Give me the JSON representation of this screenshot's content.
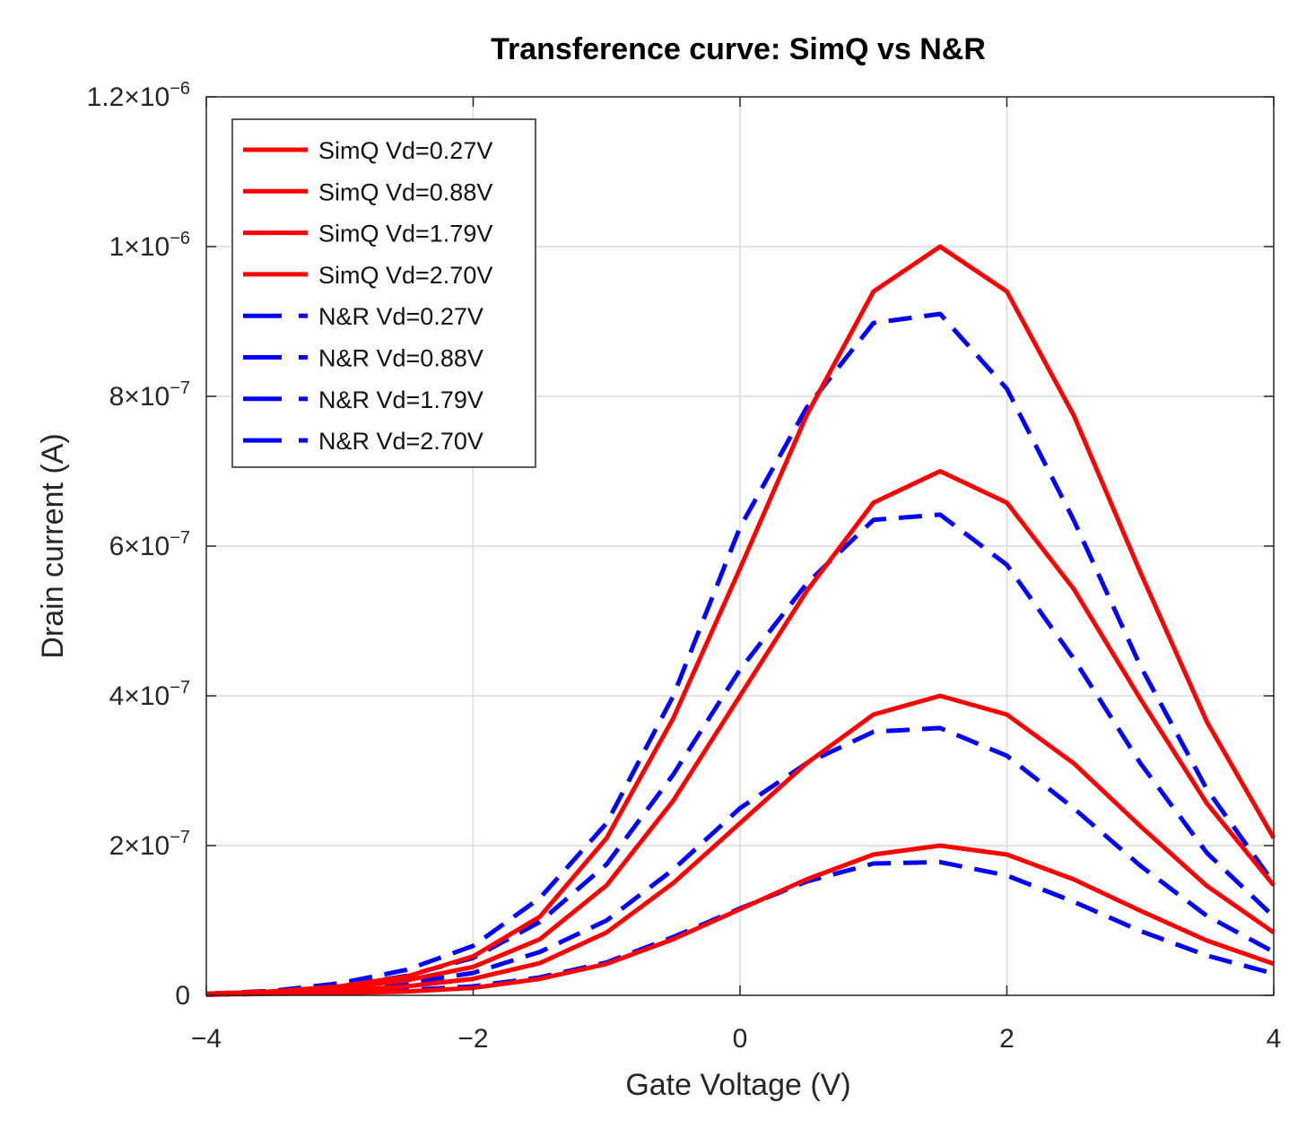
{
  "chart_data": {
    "type": "line",
    "title": "Transference curve: SimQ vs N&R",
    "xlabel": "Gate Voltage (V)",
    "ylabel": "Drain current (A)",
    "xlim": [
      -4,
      4
    ],
    "ylim": [
      0,
      1.2e-06
    ],
    "grid": true,
    "legend_position": "top-left",
    "x_ticks": [
      {
        "value": -4,
        "label": "−4"
      },
      {
        "value": -2,
        "label": "−2"
      },
      {
        "value": 0,
        "label": "0"
      },
      {
        "value": 2,
        "label": "2"
      },
      {
        "value": 4,
        "label": "4"
      }
    ],
    "y_ticks": [
      {
        "value": 0,
        "mantissa": "0",
        "exponent": ""
      },
      {
        "value": 2e-07,
        "mantissa": "2×10",
        "exponent": "−7"
      },
      {
        "value": 4e-07,
        "mantissa": "4×10",
        "exponent": "−7"
      },
      {
        "value": 6e-07,
        "mantissa": "6×10",
        "exponent": "−7"
      },
      {
        "value": 8e-07,
        "mantissa": "8×10",
        "exponent": "−7"
      },
      {
        "value": 1e-06,
        "mantissa": "1×10",
        "exponent": "−6"
      },
      {
        "value": 1.2e-06,
        "mantissa": "1.2×10",
        "exponent": "−6"
      }
    ],
    "x": [
      -4,
      -3.5,
      -3,
      -2.5,
      -2,
      -1.5,
      -1,
      -0.5,
      0,
      0.5,
      1,
      1.5,
      2,
      2.5,
      3,
      3.5,
      4
    ],
    "series": [
      {
        "name": "SimQ Vd=0.27V",
        "style": "solid",
        "color": "#ff0000",
        "values": [
          1e-09,
          2e-09,
          3e-09,
          5e-09,
          1e-08,
          2.2e-08,
          4.2e-08,
          7.5e-08,
          1.15e-07,
          1.55e-07,
          1.88e-07,
          2e-07,
          1.88e-07,
          1.55e-07,
          1.13e-07,
          7.3e-08,
          4.2e-08
        ]
      },
      {
        "name": "SimQ Vd=0.88V",
        "style": "solid",
        "color": "#ff0000",
        "values": [
          1e-09,
          3e-09,
          6e-09,
          1.2e-08,
          2.2e-08,
          4.3e-08,
          8.4e-08,
          1.5e-07,
          2.3e-07,
          3.1e-07,
          3.75e-07,
          4e-07,
          3.75e-07,
          3.1e-07,
          2.26e-07,
          1.46e-07,
          8.4e-08
        ]
      },
      {
        "name": "SimQ Vd=1.79V",
        "style": "solid",
        "color": "#ff0000",
        "values": [
          2e-09,
          5e-09,
          1e-08,
          2e-08,
          3.8e-08,
          7.5e-08,
          1.47e-07,
          2.6e-07,
          4e-07,
          5.4e-07,
          6.58e-07,
          7e-07,
          6.58e-07,
          5.43e-07,
          3.96e-07,
          2.56e-07,
          1.47e-07
        ]
      },
      {
        "name": "SimQ Vd=2.70V",
        "style": "solid",
        "color": "#ff0000",
        "values": [
          2e-09,
          5e-09,
          1.2e-08,
          2.5e-08,
          5.2e-08,
          1.05e-07,
          2.1e-07,
          3.7e-07,
          5.7e-07,
          7.75e-07,
          9.4e-07,
          1e-06,
          9.4e-07,
          7.75e-07,
          5.65e-07,
          3.65e-07,
          2.1e-07
        ]
      },
      {
        "name": "N&R Vd=0.27V",
        "style": "dashed",
        "color": "#0000ff",
        "values": [
          1e-09,
          2e-09,
          4e-09,
          7e-09,
          1.2e-08,
          2.4e-08,
          4.4e-08,
          7.8e-08,
          1.16e-07,
          1.52e-07,
          1.76e-07,
          1.78e-07,
          1.6e-07,
          1.25e-07,
          8.6e-08,
          5.3e-08,
          2.9e-08
        ]
      },
      {
        "name": "N&R Vd=0.88V",
        "style": "dashed",
        "color": "#0000ff",
        "values": [
          1e-09,
          3e-09,
          8e-09,
          1.6e-08,
          3e-08,
          5.8e-08,
          1e-07,
          1.68e-07,
          2.5e-07,
          3.1e-07,
          3.52e-07,
          3.57e-07,
          3.2e-07,
          2.5e-07,
          1.73e-07,
          1.06e-07,
          5.8e-08
        ]
      },
      {
        "name": "N&R Vd=1.79V",
        "style": "dashed",
        "color": "#0000ff",
        "values": [
          2e-09,
          5e-09,
          1.2e-08,
          2.6e-08,
          5e-08,
          9.8e-08,
          1.75e-07,
          2.95e-07,
          4.35e-07,
          5.5e-07,
          6.35e-07,
          6.42e-07,
          5.75e-07,
          4.5e-07,
          3.1e-07,
          1.9e-07,
          1.05e-07
        ]
      },
      {
        "name": "N&R Vd=2.70V",
        "style": "dashed",
        "color": "#0000ff",
        "values": [
          2e-09,
          6e-09,
          1.6e-08,
          3.4e-08,
          6.6e-08,
          1.3e-07,
          2.3e-07,
          4e-07,
          6.25e-07,
          7.85e-07,
          8.98e-07,
          9.1e-07,
          8.1e-07,
          6.35e-07,
          4.4e-07,
          2.75e-07,
          1.5e-07
        ]
      }
    ]
  }
}
